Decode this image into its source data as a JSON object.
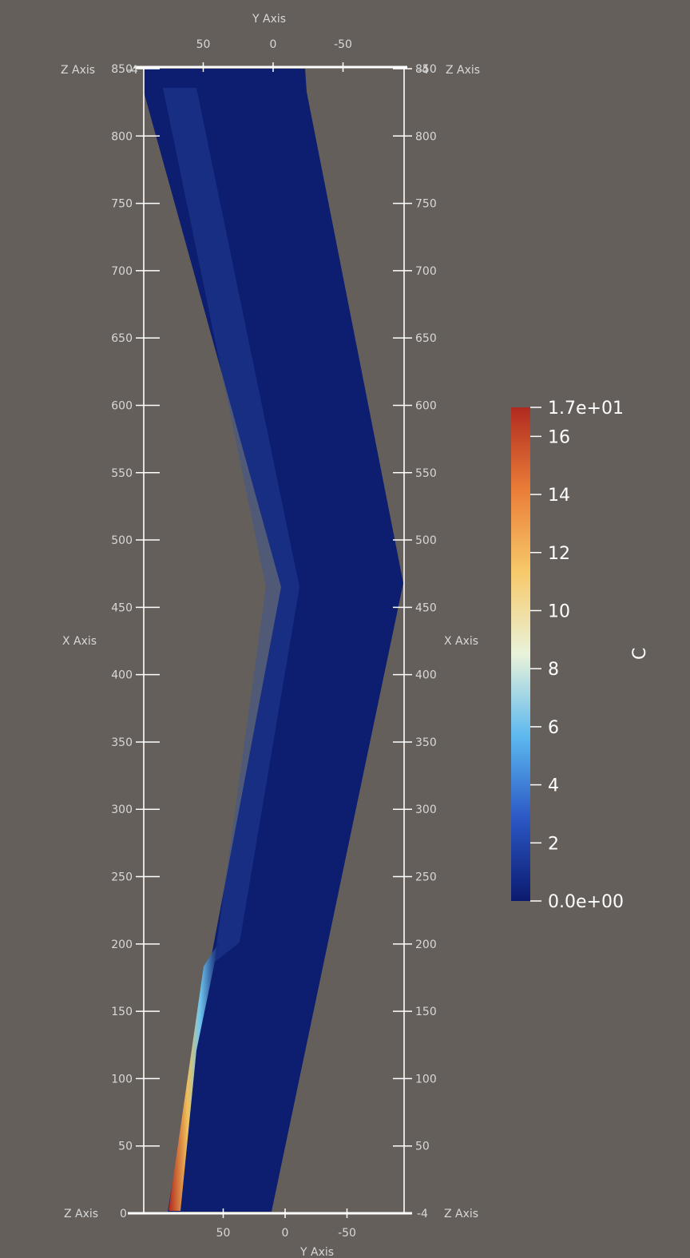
{
  "viewer": {
    "background_color": "#645f5b",
    "axis_color": "#ffffff",
    "label_color": "#d8d8d8"
  },
  "axes": {
    "left_title": "X Axis",
    "right_title": "X Axis",
    "top_title": "Y Axis",
    "bottom_title": "Y Axis",
    "top_left_corner_title": "Z Axis",
    "top_right_corner_title": "Z Axis",
    "bottom_left_corner_title": "Z Axis",
    "bottom_right_corner_title": "Z Axis",
    "corner_tick_label": "-4",
    "corner_zero_label": "0",
    "x_ticks": [
      {
        "value": 0,
        "label": "0"
      },
      {
        "value": 50,
        "label": "50"
      },
      {
        "value": 100,
        "label": "100"
      },
      {
        "value": 150,
        "label": "150"
      },
      {
        "value": 200,
        "label": "200"
      },
      {
        "value": 250,
        "label": "250"
      },
      {
        "value": 300,
        "label": "300"
      },
      {
        "value": 350,
        "label": "350"
      },
      {
        "value": 400,
        "label": "400"
      },
      {
        "value": 450,
        "label": "450"
      },
      {
        "value": 500,
        "label": "500"
      },
      {
        "value": 550,
        "label": "550"
      },
      {
        "value": 600,
        "label": "600"
      },
      {
        "value": 650,
        "label": "650"
      },
      {
        "value": 700,
        "label": "700"
      },
      {
        "value": 750,
        "label": "750"
      },
      {
        "value": 800,
        "label": "800"
      },
      {
        "value": 850,
        "label": "850"
      }
    ],
    "y_ticks": [
      {
        "value": 50,
        "label": "50"
      },
      {
        "value": 0,
        "label": "0"
      },
      {
        "value": -50,
        "label": "-50"
      }
    ]
  },
  "colorbar": {
    "title": "C",
    "max_label": "1.7e+01",
    "min_label": "0.0e+00",
    "min": 0,
    "max": 17,
    "ticks": [
      {
        "value": 16,
        "label": "16"
      },
      {
        "value": 14,
        "label": "14"
      },
      {
        "value": 12,
        "label": "12"
      },
      {
        "value": 10,
        "label": "10"
      },
      {
        "value": 8,
        "label": "8"
      },
      {
        "value": 6,
        "label": "6"
      },
      {
        "value": 4,
        "label": "4"
      },
      {
        "value": 2,
        "label": "2"
      }
    ],
    "colors": [
      "#0b1a6e",
      "#2b57c4",
      "#5cb8ef",
      "#e9f3da",
      "#f7c96a",
      "#ea7d38",
      "#b02a1f"
    ]
  },
  "field": {
    "base_color": "#0d1d6f",
    "ridge_color": "#2a4fa8",
    "plume_high_color": "#b3271d",
    "plume_mid_color": "#f0c05a",
    "plume_low_color": "#70c7ef"
  }
}
